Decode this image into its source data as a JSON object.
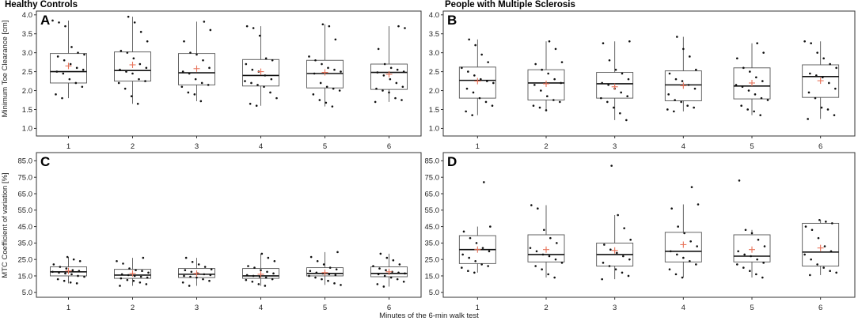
{
  "figure": {
    "group_titles": [
      "Healthy Controls",
      "People with Multiple Sclerosis"
    ],
    "xlabel": "Minutes of the 6-min walk test",
    "ylabel_top": "Minimum Toe Clearance [cm]",
    "ylabel_bottom": "MTC Coefficient of variation [%]",
    "colors": {
      "box": "#555555",
      "point": "#111111",
      "mean": "#e8735a"
    }
  },
  "chart_data": [
    {
      "type": "boxplot",
      "panel": "A",
      "group": "Healthy Controls",
      "xlabel": "Minutes of the 6-min walk test",
      "ylabel": "Minimum Toe Clearance [cm]",
      "categories": [
        "1",
        "2",
        "3",
        "4",
        "5",
        "6"
      ],
      "ylim": [
        0.8,
        4.1
      ],
      "yticks": [
        "1.0",
        "1.5",
        "2.0",
        "2.5",
        "3.0",
        "3.5",
        "4.0"
      ],
      "boxes": [
        {
          "min": 1.8,
          "q1": 2.2,
          "median": 2.5,
          "q3": 2.98,
          "max": 3.85,
          "mean": 2.65
        },
        {
          "min": 1.65,
          "q1": 2.25,
          "median": 2.53,
          "q3": 3.02,
          "max": 3.95,
          "mean": 2.68
        },
        {
          "min": 1.72,
          "q1": 2.15,
          "median": 2.47,
          "q3": 2.98,
          "max": 3.82,
          "mean": 2.58
        },
        {
          "min": 1.6,
          "q1": 2.12,
          "median": 2.4,
          "q3": 2.82,
          "max": 3.7,
          "mean": 2.5
        },
        {
          "min": 1.58,
          "q1": 2.07,
          "median": 2.45,
          "q3": 2.8,
          "max": 3.75,
          "mean": 2.48
        },
        {
          "min": 1.7,
          "q1": 2.03,
          "median": 2.48,
          "q3": 2.7,
          "max": 3.7,
          "mean": 2.43
        }
      ],
      "points": [
        [
          3.85,
          3.8,
          3.7,
          3.15,
          3.0,
          2.95,
          2.9,
          2.8,
          2.7,
          2.6,
          2.55,
          2.5,
          2.45,
          2.3,
          2.2,
          2.1,
          1.9,
          1.8
        ],
        [
          3.95,
          3.8,
          3.55,
          3.3,
          3.05,
          3.0,
          2.85,
          2.7,
          2.6,
          2.55,
          2.5,
          2.45,
          2.3,
          2.25,
          2.2,
          2.05,
          1.85,
          1.65
        ],
        [
          3.82,
          3.6,
          3.3,
          3.0,
          2.95,
          2.8,
          2.6,
          2.5,
          2.45,
          2.3,
          2.2,
          2.15,
          2.1,
          1.95,
          1.9,
          1.72
        ],
        [
          3.7,
          3.65,
          3.45,
          2.85,
          2.8,
          2.7,
          2.55,
          2.5,
          2.4,
          2.3,
          2.25,
          2.2,
          2.15,
          2.1,
          1.95,
          1.8,
          1.65,
          1.6
        ],
        [
          3.75,
          3.7,
          3.35,
          2.9,
          2.8,
          2.7,
          2.6,
          2.55,
          2.5,
          2.45,
          2.2,
          2.1,
          2.05,
          2.0,
          1.9,
          1.75,
          1.68,
          1.58
        ],
        [
          3.7,
          3.65,
          3.1,
          2.7,
          2.6,
          2.55,
          2.5,
          2.48,
          2.4,
          2.3,
          2.2,
          2.1,
          2.05,
          2.0,
          1.95,
          1.8,
          1.75,
          1.7
        ]
      ]
    },
    {
      "type": "boxplot",
      "panel": "B",
      "group": "People with Multiple Sclerosis",
      "xlabel": "Minutes of the 6-min walk test",
      "ylabel": "Minimum Toe Clearance [cm]",
      "categories": [
        "1",
        "2",
        "3",
        "4",
        "5",
        "6"
      ],
      "ylim": [
        0.8,
        4.1
      ],
      "yticks": [
        "1.0",
        "1.5",
        "2.0",
        "2.5",
        "3.0",
        "3.5",
        "4.0"
      ],
      "boxes": [
        {
          "min": 1.35,
          "q1": 1.8,
          "median": 2.27,
          "q3": 2.62,
          "max": 3.35,
          "mean": 2.25
        },
        {
          "min": 1.48,
          "q1": 1.75,
          "median": 2.2,
          "q3": 2.55,
          "max": 3.3,
          "mean": 2.18
        },
        {
          "min": 1.22,
          "q1": 1.8,
          "median": 2.18,
          "q3": 2.48,
          "max": 3.3,
          "mean": 2.1
        },
        {
          "min": 1.45,
          "q1": 1.73,
          "median": 2.15,
          "q3": 2.52,
          "max": 3.42,
          "mean": 2.13
        },
        {
          "min": 1.35,
          "q1": 1.78,
          "median": 2.12,
          "q3": 2.6,
          "max": 3.25,
          "mean": 2.2
        },
        {
          "min": 1.25,
          "q1": 1.82,
          "median": 2.37,
          "q3": 2.68,
          "max": 3.3,
          "mean": 2.26
        }
      ],
      "points": [
        [
          3.35,
          3.2,
          2.95,
          2.75,
          2.6,
          2.5,
          2.4,
          2.3,
          2.25,
          2.2,
          2.05,
          1.95,
          1.8,
          1.7,
          1.6,
          1.45,
          1.35
        ],
        [
          3.3,
          3.1,
          2.75,
          2.7,
          2.55,
          2.45,
          2.3,
          2.2,
          2.15,
          2.0,
          1.85,
          1.75,
          1.7,
          1.6,
          1.55,
          1.48
        ],
        [
          3.3,
          3.25,
          2.8,
          2.55,
          2.45,
          2.3,
          2.2,
          2.15,
          2.05,
          1.95,
          1.85,
          1.8,
          1.7,
          1.55,
          1.4,
          1.22
        ],
        [
          3.42,
          3.1,
          2.9,
          2.55,
          2.45,
          2.3,
          2.25,
          2.15,
          2.05,
          1.9,
          1.75,
          1.7,
          1.6,
          1.55,
          1.5,
          1.45
        ],
        [
          3.25,
          3.0,
          2.85,
          2.6,
          2.5,
          2.35,
          2.25,
          2.15,
          2.1,
          2.0,
          1.9,
          1.8,
          1.75,
          1.6,
          1.5,
          1.45,
          1.35
        ],
        [
          3.3,
          3.25,
          3.0,
          2.85,
          2.7,
          2.6,
          2.45,
          2.4,
          2.35,
          2.2,
          2.05,
          1.95,
          1.8,
          1.55,
          1.5,
          1.35,
          1.25
        ]
      ]
    },
    {
      "type": "boxplot",
      "panel": "C",
      "group": "Healthy Controls",
      "xlabel": "Minutes of the 6-min walk test",
      "ylabel": "MTC Coefficient of variation [%]",
      "categories": [
        "1",
        "2",
        "3",
        "4",
        "5",
        "6"
      ],
      "ylim": [
        2,
        90
      ],
      "yticks": [
        "5.0",
        "15.0",
        "25.0",
        "35.0",
        "45.0",
        "55.0",
        "65.0",
        "75.0",
        "85.0"
      ],
      "boxes": [
        {
          "min": 10.5,
          "q1": 15.0,
          "median": 17.5,
          "q3": 20.5,
          "max": 26.5,
          "mean": 18.0
        },
        {
          "min": 9.0,
          "q1": 13.5,
          "median": 15.5,
          "q3": 19.0,
          "max": 26.0,
          "mean": 16.5
        },
        {
          "min": 9.0,
          "q1": 14.0,
          "median": 16.0,
          "q3": 19.5,
          "max": 26.0,
          "mean": 16.5
        },
        {
          "min": 9.0,
          "q1": 13.5,
          "median": 15.0,
          "q3": 19.5,
          "max": 28.5,
          "mean": 16.0
        },
        {
          "min": 9.5,
          "q1": 15.0,
          "median": 16.5,
          "q3": 20.0,
          "max": 29.5,
          "mean": 17.0
        },
        {
          "min": 8.5,
          "q1": 14.5,
          "median": 16.5,
          "q3": 20.5,
          "max": 28.5,
          "mean": 17.5
        }
      ],
      "points": [
        [
          26.5,
          25.0,
          24.0,
          22.0,
          20.5,
          19.5,
          18.5,
          18.0,
          17.5,
          17.0,
          16.5,
          16.0,
          15.0,
          14.5,
          13.0,
          12.0,
          11.0,
          10.5
        ],
        [
          26.0,
          24.0,
          22.5,
          19.5,
          18.5,
          18.0,
          17.0,
          16.0,
          15.5,
          15.0,
          14.5,
          14.0,
          13.5,
          12.5,
          12.0,
          11.0,
          10.0,
          9.0
        ],
        [
          26.0,
          23.5,
          22.0,
          20.5,
          19.0,
          18.5,
          17.5,
          16.5,
          16.0,
          15.5,
          15.0,
          14.5,
          14.0,
          13.0,
          12.0,
          11.0,
          9.0
        ],
        [
          28.5,
          26.0,
          24.0,
          21.0,
          20.0,
          18.5,
          17.5,
          16.5,
          15.5,
          15.0,
          14.5,
          14.0,
          13.0,
          12.5,
          11.5,
          10.0,
          9.0
        ],
        [
          29.5,
          26.5,
          24.0,
          22.0,
          20.0,
          19.0,
          18.0,
          17.0,
          16.5,
          16.0,
          15.5,
          15.0,
          14.0,
          13.0,
          12.0,
          10.5,
          9.5
        ],
        [
          28.5,
          26.0,
          24.5,
          22.0,
          21.0,
          19.5,
          18.5,
          17.5,
          17.0,
          16.5,
          16.0,
          15.0,
          14.0,
          13.0,
          11.5,
          10.0,
          8.5
        ]
      ]
    },
    {
      "type": "boxplot",
      "panel": "D",
      "group": "People with Multiple Sclerosis",
      "xlabel": "Minutes of the 6-min walk test",
      "ylabel": "MTC Coefficient of variation [%]",
      "categories": [
        "1",
        "2",
        "3",
        "4",
        "5",
        "6"
      ],
      "ylim": [
        2,
        90
      ],
      "yticks": [
        "5.0",
        "15.0",
        "25.0",
        "35.0",
        "45.0",
        "55.0",
        "65.0",
        "75.0",
        "85.0"
      ],
      "boxes": [
        {
          "min": 17.0,
          "q1": 22.5,
          "median": 31.0,
          "q3": 39.5,
          "max": 45.0,
          "mean": 31.0
        },
        {
          "min": 14.0,
          "q1": 23.5,
          "median": 28.0,
          "q3": 40.0,
          "max": 58.0,
          "mean": 31.0
        },
        {
          "min": 13.0,
          "q1": 21.0,
          "median": 28.0,
          "q3": 35.0,
          "max": 52.0,
          "mean": 30.5
        },
        {
          "min": 14.0,
          "q1": 23.5,
          "median": 30.0,
          "q3": 41.5,
          "max": 58.5,
          "mean": 34.0
        },
        {
          "min": 14.0,
          "q1": 23.5,
          "median": 27.0,
          "q3": 40.0,
          "max": 43.0,
          "mean": 31.0
        },
        {
          "min": 15.5,
          "q1": 21.0,
          "median": 29.5,
          "q3": 47.0,
          "max": 49.0,
          "mean": 32.0
        }
      ],
      "points": [
        [
          72.0,
          45.0,
          42.0,
          38.0,
          35.0,
          32.0,
          30.0,
          28.0,
          26.0,
          24.0,
          22.0,
          21.0,
          20.0,
          18.0,
          17.0
        ],
        [
          58.0,
          56.0,
          43.0,
          38.0,
          35.0,
          32.0,
          30.0,
          28.0,
          27.0,
          25.0,
          23.0,
          21.0,
          19.0,
          16.0,
          14.0
        ],
        [
          82.0,
          52.0,
          44.0,
          37.0,
          34.0,
          31.0,
          29.0,
          27.0,
          25.0,
          23.0,
          21.0,
          19.0,
          17.0,
          15.0,
          13.0
        ],
        [
          69.0,
          58.5,
          56.0,
          45.0,
          41.0,
          36.0,
          33.0,
          30.0,
          28.0,
          26.0,
          24.0,
          22.0,
          19.0,
          16.0,
          14.0
        ],
        [
          73.0,
          43.0,
          41.0,
          37.0,
          33.0,
          30.0,
          28.0,
          27.0,
          25.0,
          23.0,
          22.0,
          20.0,
          18.0,
          16.0,
          14.0
        ],
        [
          49.0,
          48.0,
          47.0,
          45.0,
          43.0,
          38.0,
          33.0,
          30.0,
          28.0,
          25.0,
          22.0,
          20.0,
          18.0,
          17.0,
          15.5
        ]
      ]
    }
  ]
}
